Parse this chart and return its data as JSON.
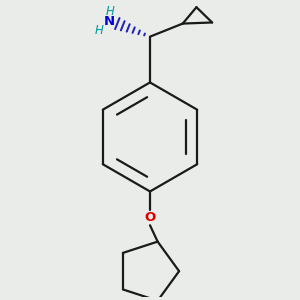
{
  "background_color": "#eaecea",
  "line_color": "#1a1a1a",
  "bond_lw": 1.6,
  "nh2_n_color": "#0000dd",
  "nh2_h_color": "#009999",
  "oxygen_color": "#dd0000",
  "figsize": [
    3.0,
    3.0
  ],
  "dpi": 100,
  "xlim": [
    -1.15,
    1.15
  ],
  "ylim": [
    -1.55,
    1.15
  ]
}
